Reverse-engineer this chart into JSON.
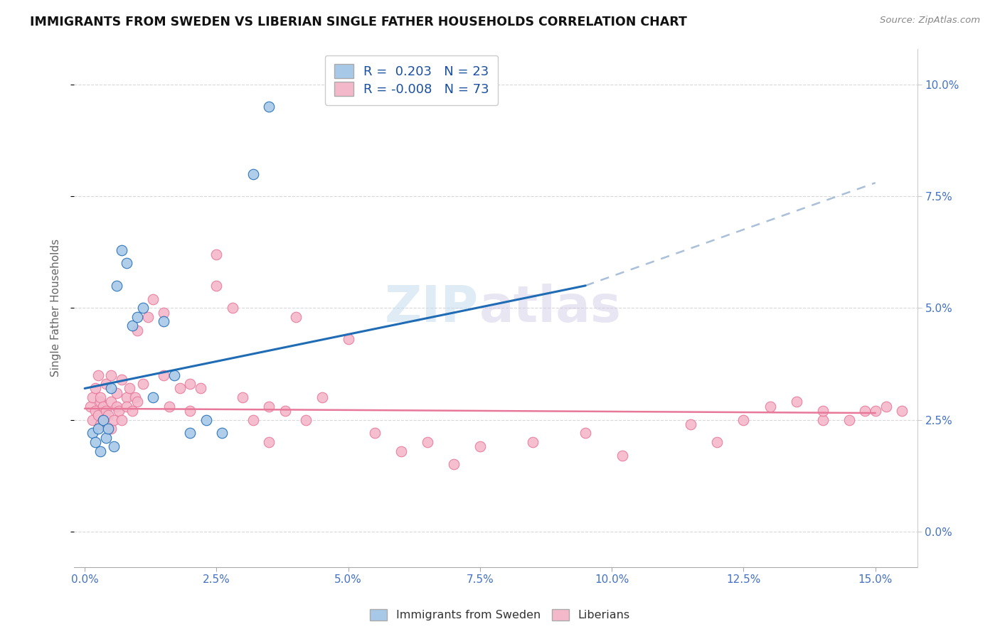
{
  "title": "IMMIGRANTS FROM SWEDEN VS LIBERIAN SINGLE FATHER HOUSEHOLDS CORRELATION CHART",
  "source": "Source: ZipAtlas.com",
  "ylabel_label": "Single Father Households",
  "watermark": "ZIPatlas",
  "blue_color": "#a8c8e8",
  "pink_color": "#f4b8cb",
  "blue_line_color": "#1f6cb5",
  "pink_line_color": "#e8789a",
  "blue_dash_color": "#aabfd8",
  "sweden_x": [
    0.15,
    0.2,
    0.25,
    0.3,
    0.35,
    0.4,
    0.45,
    0.5,
    0.55,
    0.6,
    0.7,
    0.8,
    0.9,
    1.0,
    1.1,
    1.3,
    1.5,
    1.7,
    2.0,
    2.3,
    2.6,
    3.2,
    3.5
  ],
  "sweden_y": [
    2.2,
    2.0,
    2.3,
    1.8,
    2.5,
    2.1,
    2.3,
    3.2,
    1.9,
    5.5,
    6.3,
    6.0,
    4.6,
    4.8,
    5.0,
    3.0,
    4.7,
    3.5,
    2.2,
    2.5,
    2.2,
    8.0,
    9.5
  ],
  "liberia_x": [
    0.1,
    0.15,
    0.15,
    0.2,
    0.2,
    0.25,
    0.25,
    0.3,
    0.3,
    0.3,
    0.35,
    0.35,
    0.4,
    0.4,
    0.45,
    0.5,
    0.5,
    0.5,
    0.55,
    0.6,
    0.6,
    0.65,
    0.7,
    0.7,
    0.8,
    0.8,
    0.85,
    0.9,
    0.95,
    1.0,
    1.0,
    1.1,
    1.2,
    1.3,
    1.5,
    1.5,
    1.6,
    1.8,
    2.0,
    2.0,
    2.2,
    2.5,
    2.5,
    2.8,
    3.0,
    3.2,
    3.5,
    3.5,
    3.8,
    4.0,
    4.2,
    4.5,
    5.0,
    5.5,
    6.0,
    6.5,
    7.0,
    7.5,
    8.5,
    9.5,
    10.2,
    11.5,
    12.0,
    12.5,
    13.0,
    13.5,
    14.0,
    14.0,
    14.5,
    14.8,
    15.0,
    15.2,
    15.5
  ],
  "liberia_y": [
    2.8,
    3.0,
    2.5,
    2.7,
    3.2,
    2.6,
    3.5,
    2.4,
    2.9,
    3.0,
    2.5,
    2.8,
    2.7,
    3.3,
    2.6,
    2.9,
    3.5,
    2.3,
    2.5,
    3.1,
    2.8,
    2.7,
    3.4,
    2.5,
    3.0,
    2.8,
    3.2,
    2.7,
    3.0,
    2.9,
    4.5,
    3.3,
    4.8,
    5.2,
    4.9,
    3.5,
    2.8,
    3.2,
    2.7,
    3.3,
    3.2,
    5.5,
    6.2,
    5.0,
    3.0,
    2.5,
    2.8,
    2.0,
    2.7,
    4.8,
    2.5,
    3.0,
    4.3,
    2.2,
    1.8,
    2.0,
    1.5,
    1.9,
    2.0,
    2.2,
    1.7,
    2.4,
    2.0,
    2.5,
    2.8,
    2.9,
    2.5,
    2.7,
    2.5,
    2.7,
    2.7,
    2.8,
    2.7
  ],
  "blue_line_x0": 0.0,
  "blue_line_y0": 3.2,
  "blue_line_x1": 9.5,
  "blue_line_y1": 5.5,
  "blue_dash_x0": 9.5,
  "blue_dash_y0": 5.5,
  "blue_dash_x1": 15.0,
  "blue_dash_y1": 7.8,
  "pink_line_x0": 0.0,
  "pink_line_y0": 2.75,
  "pink_line_x1": 15.0,
  "pink_line_y1": 2.65,
  "xlim_min": -0.2,
  "xlim_max": 15.8,
  "ylim_min": -0.8,
  "ylim_max": 10.8,
  "xtick_vals": [
    0.0,
    2.5,
    5.0,
    7.5,
    10.0,
    12.5,
    15.0
  ],
  "ytick_vals": [
    0.0,
    2.5,
    5.0,
    7.5,
    10.0
  ]
}
